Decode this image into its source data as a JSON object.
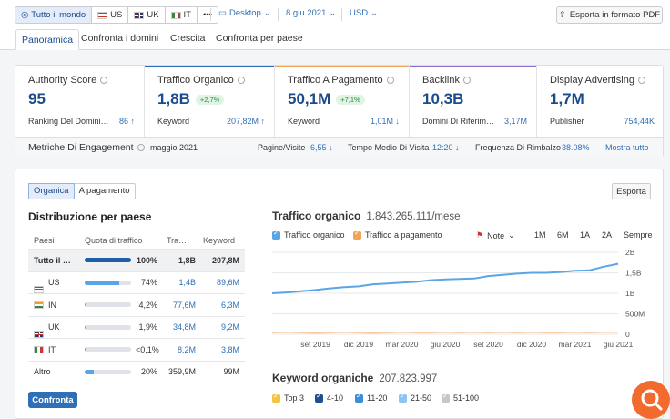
{
  "toolbar": {
    "all_world": "Tutto il mondo",
    "countries": [
      "US",
      "UK",
      "IT"
    ],
    "more": "•••",
    "device": "Desktop",
    "date": "8 giu 2021",
    "currency": "USD",
    "export_pdf": "Esporta in formato PDF"
  },
  "tabs": [
    "Panoramica",
    "Confronta i domini",
    "Crescita",
    "Confronta per paese"
  ],
  "metrics": [
    {
      "title": "Authority Score",
      "value": "95",
      "sub_label": "Ranking Del Domini…",
      "sub_value": "86 ↑",
      "badge": ""
    },
    {
      "title": "Traffico Organico",
      "value": "1,8B",
      "badge": "+2,7%",
      "sub_label": "Keyword",
      "sub_value": "207,82M ↑"
    },
    {
      "title": "Traffico A Pagamento",
      "value": "50,1M",
      "badge": "+7,1%",
      "sub_label": "Keyword",
      "sub_value": "1,01M ↓"
    },
    {
      "title": "Backlink",
      "value": "10,3B",
      "badge": "",
      "sub_label": "Domini Di Riferim…",
      "sub_value": "3,17M"
    },
    {
      "title": "Display Advertising",
      "value": "1,7M",
      "badge": "",
      "sub_label": "Publisher",
      "sub_value": "754,44K"
    }
  ],
  "engagement": {
    "title": "Metriche Di Engagement",
    "month": "maggio 2021",
    "pages_label": "Pagine/Visite",
    "pages_value": "6,55 ↓",
    "time_label": "Tempo Medio Di Visita",
    "time_value": "12:20 ↓",
    "bounce_label": "Frequenza Di Rimbalzo",
    "bounce_value": "38.08%",
    "show_all": "Mostra tutto"
  },
  "main": {
    "seg_organic": "Organica",
    "seg_paid": "A pagamento",
    "export": "Esporta",
    "dist_title": "Distribuzione per paese",
    "columns": [
      "Paesi",
      "Quota di traffico",
      "Tra…",
      "Keyword"
    ],
    "rows": [
      {
        "country": "Tutto il …",
        "pct": "100%",
        "share": 1.0,
        "traffic": "1,8B",
        "keywords": "207,8M",
        "flag": ""
      },
      {
        "country": "US",
        "pct": "74%",
        "share": 0.74,
        "traffic": "1,4B",
        "keywords": "89,6M",
        "flag": "us"
      },
      {
        "country": "IN",
        "pct": "4,2%",
        "share": 0.042,
        "traffic": "77,6M",
        "keywords": "6,3M",
        "flag": "in"
      },
      {
        "country": "UK",
        "pct": "1,9%",
        "share": 0.019,
        "traffic": "34,8M",
        "keywords": "9,2M",
        "flag": "uk"
      },
      {
        "country": "IT",
        "pct": "<0,1%",
        "share": 0.001,
        "traffic": "8,2M",
        "keywords": "3,8M",
        "flag": "it"
      },
      {
        "country": "Altro",
        "pct": "20%",
        "share": 0.2,
        "traffic": "359,9M",
        "keywords": "99M",
        "flag": ""
      }
    ],
    "compare": "Confronta",
    "chart_title": "Traffico organico",
    "chart_total": "1.843.265.111/mese",
    "legend_organic": "Traffico organico",
    "legend_paid": "Traffico a pagamento",
    "notes": "Note",
    "ranges": [
      "1M",
      "6M",
      "1A",
      "2A",
      "Sempre"
    ],
    "kw_title": "Keyword organiche",
    "kw_total": "207.823.997",
    "kw_legend": [
      "Top 3",
      "4-10",
      "11-20",
      "21-50",
      "51-100"
    ]
  },
  "colors": {
    "organic": "#5aa5e6",
    "paid": "#f0a35a",
    "accent": "#2f6fb5",
    "orange": "#f26a2d"
  },
  "chart_data": {
    "type": "line",
    "x": [
      "giu 2019",
      "lug 2019",
      "ago 2019",
      "set 2019",
      "ott 2019",
      "nov 2019",
      "dic 2019",
      "gen 2020",
      "feb 2020",
      "mar 2020",
      "apr 2020",
      "mag 2020",
      "giu 2020",
      "lug 2020",
      "ago 2020",
      "set 2020",
      "ott 2020",
      "nov 2020",
      "dic 2020",
      "gen 2021",
      "feb 2021",
      "mar 2021",
      "apr 2021",
      "mag 2021",
      "giu 2021"
    ],
    "series": [
      {
        "name": "Traffico organico",
        "values": [
          1.0,
          1.02,
          1.05,
          1.08,
          1.12,
          1.15,
          1.17,
          1.22,
          1.24,
          1.26,
          1.28,
          1.32,
          1.34,
          1.35,
          1.36,
          1.42,
          1.45,
          1.48,
          1.5,
          1.5,
          1.52,
          1.55,
          1.56,
          1.65,
          1.72
        ]
      },
      {
        "name": "Traffico a pagamento",
        "values": [
          0.04,
          0.05,
          0.04,
          0.03,
          0.04,
          0.05,
          0.04,
          0.03,
          0.04,
          0.05,
          0.04,
          0.04,
          0.05,
          0.04,
          0.05,
          0.04,
          0.05,
          0.04,
          0.05,
          0.04,
          0.04,
          0.05,
          0.04,
          0.05,
          0.05
        ]
      }
    ],
    "ylim": [
      0,
      2
    ],
    "yticks": [
      "0",
      "500M",
      "1B",
      "1,5B",
      "2B"
    ],
    "xticks": [
      "set 2019",
      "dic 2019",
      "mar 2020",
      "giu 2020",
      "set 2020",
      "dic 2020",
      "mar 2021",
      "giu 2021"
    ],
    "grid": true
  }
}
